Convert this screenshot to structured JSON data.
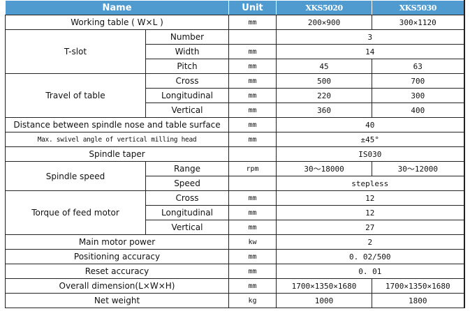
{
  "header": {
    "name": "Name",
    "unit": "Unit",
    "model1": "XKS5020",
    "model2": "XKS5030"
  },
  "rows": {
    "working_table": {
      "label": "Working table ( W×L )",
      "unit": "mm",
      "v1": "200×900",
      "v2": "300×1120"
    },
    "tslot": {
      "label": "T-slot",
      "number": {
        "label": "Number",
        "unit": "",
        "v": "3"
      },
      "width": {
        "label": "Width",
        "unit": "mm",
        "v": "14"
      },
      "pitch": {
        "label": "Pitch",
        "unit": "mm",
        "v1": "45",
        "v2": "63"
      }
    },
    "travel": {
      "label": "Travel of table",
      "cross": {
        "label": "Cross",
        "unit": "mm",
        "v1": "500",
        "v2": "700"
      },
      "longitudinal": {
        "label": "Longitudinal",
        "unit": "mm",
        "v1": "220",
        "v2": "300"
      },
      "vertical": {
        "label": "Vertical",
        "unit": "mm",
        "v1": "360",
        "v2": "400"
      }
    },
    "distance": {
      "label": "Distance between spindle nose and table surface",
      "unit": "mm",
      "v": "40"
    },
    "swivel": {
      "label": "Max. swivel angle of vertical milling head",
      "unit": "mm",
      "v": "±45°"
    },
    "taper": {
      "label": "Spindle taper",
      "unit": "",
      "v": "IS030"
    },
    "spindle_speed": {
      "label": "Spindle speed",
      "range": {
        "label": "Range",
        "unit": "rpm",
        "v1": "30～18000",
        "v2": "30～12000"
      },
      "speed": {
        "label": "Speed",
        "unit": "",
        "v": "stepless"
      }
    },
    "torque": {
      "label": "Torque of feed motor",
      "cross": {
        "label": "Cross",
        "unit": "mm",
        "v": "12"
      },
      "longitudinal": {
        "label": "Longitudinal",
        "unit": "mm",
        "v": "12"
      },
      "vertical": {
        "label": "Vertical",
        "unit": "mm",
        "v": "27"
      }
    },
    "main_motor": {
      "label": "Main motor power",
      "unit": "kw",
      "v": "2"
    },
    "positioning": {
      "label": "Positioning accuracy",
      "unit": "mm",
      "v": "0. 02/500"
    },
    "reset": {
      "label": "Reset accuracy",
      "unit": "mm",
      "v": "0. 01"
    },
    "overall": {
      "label": "Overall dimension(L×W×H)",
      "unit": "mm",
      "v1": "1700×1350×1680",
      "v2": "1700×1350×1680"
    },
    "net_weight": {
      "label": "Net weight",
      "unit": "kg",
      "v1": "1000",
      "v2": "1800"
    }
  },
  "colors": {
    "header_bg": "#4f9bcf",
    "header_text": "#ffffff",
    "border": "#222222"
  }
}
